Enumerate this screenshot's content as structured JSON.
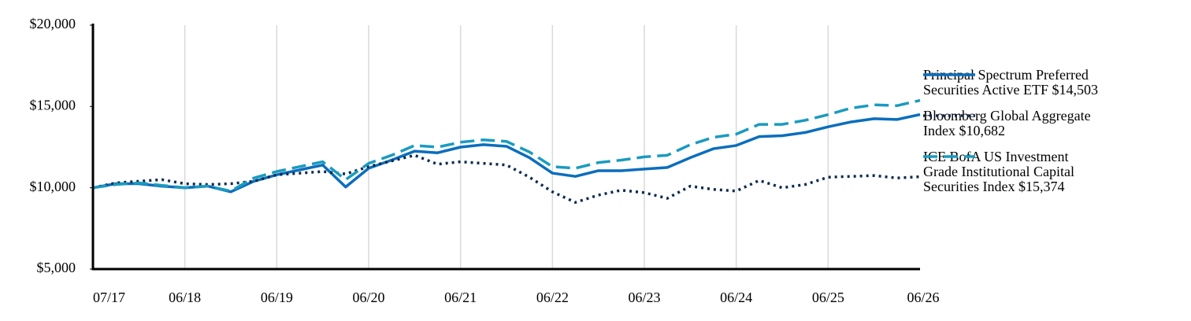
{
  "chart_data": {
    "type": "line",
    "categories": [
      "07/17",
      null,
      null,
      null,
      "06/18",
      null,
      null,
      null,
      "06/19",
      null,
      null,
      null,
      "06/20",
      null,
      null,
      null,
      "06/21",
      null,
      null,
      null,
      "06/22",
      null,
      null,
      null,
      "06/23",
      null,
      null,
      null,
      "06/24",
      null,
      null,
      null,
      "06/25",
      null,
      null,
      null,
      "06/26"
    ],
    "series": [
      {
        "name": "Principal Spectrum Preferred Securities Active ETF $14,503",
        "color": "#0a6ebd",
        "style": "solid",
        "values": [
          10000,
          10250,
          10250,
          10100,
          10000,
          10100,
          9750,
          10400,
          10800,
          11100,
          11400,
          10050,
          11200,
          11700,
          12250,
          12150,
          12500,
          12650,
          12550,
          11850,
          10900,
          10700,
          11050,
          11050,
          11150,
          11250,
          11850,
          12400,
          12600,
          13150,
          13200,
          13400,
          13750,
          14050,
          14250,
          14200,
          14503
        ]
      },
      {
        "name": "Bloomberg Global Aggregate Index $10,682",
        "color": "#0d2a4f",
        "style": "dotted",
        "values": [
          10000,
          10300,
          10400,
          10500,
          10250,
          10200,
          10250,
          10400,
          10800,
          10900,
          11000,
          10850,
          11300,
          11650,
          12000,
          11450,
          11600,
          11500,
          11400,
          10650,
          9750,
          9100,
          9550,
          9850,
          9700,
          9350,
          10100,
          9900,
          9800,
          10450,
          10000,
          10200,
          10650,
          10700,
          10750,
          10600,
          10682
        ]
      },
      {
        "name": "ICE BofA US Investment Grade Institutional Capital Securities Index $15,374",
        "color": "#1a9bbf",
        "style": "dashed",
        "values": [
          10000,
          10200,
          10300,
          10150,
          10000,
          10100,
          9800,
          10600,
          11000,
          11300,
          11600,
          10500,
          11500,
          12000,
          12600,
          12500,
          12800,
          12950,
          12850,
          12200,
          11300,
          11200,
          11550,
          11700,
          11900,
          12000,
          12650,
          13100,
          13300,
          13900,
          13900,
          14150,
          14500,
          14900,
          15100,
          15050,
          15374
        ]
      }
    ],
    "ylim": [
      5000,
      20000
    ],
    "yticks": [
      {
        "value": 5000,
        "label": "$5,000"
      },
      {
        "value": 10000,
        "label": "$10,000"
      },
      {
        "value": 15000,
        "label": "$15,000"
      },
      {
        "value": 20000,
        "label": "$20,000"
      }
    ],
    "grid": "x",
    "legend": "right"
  }
}
